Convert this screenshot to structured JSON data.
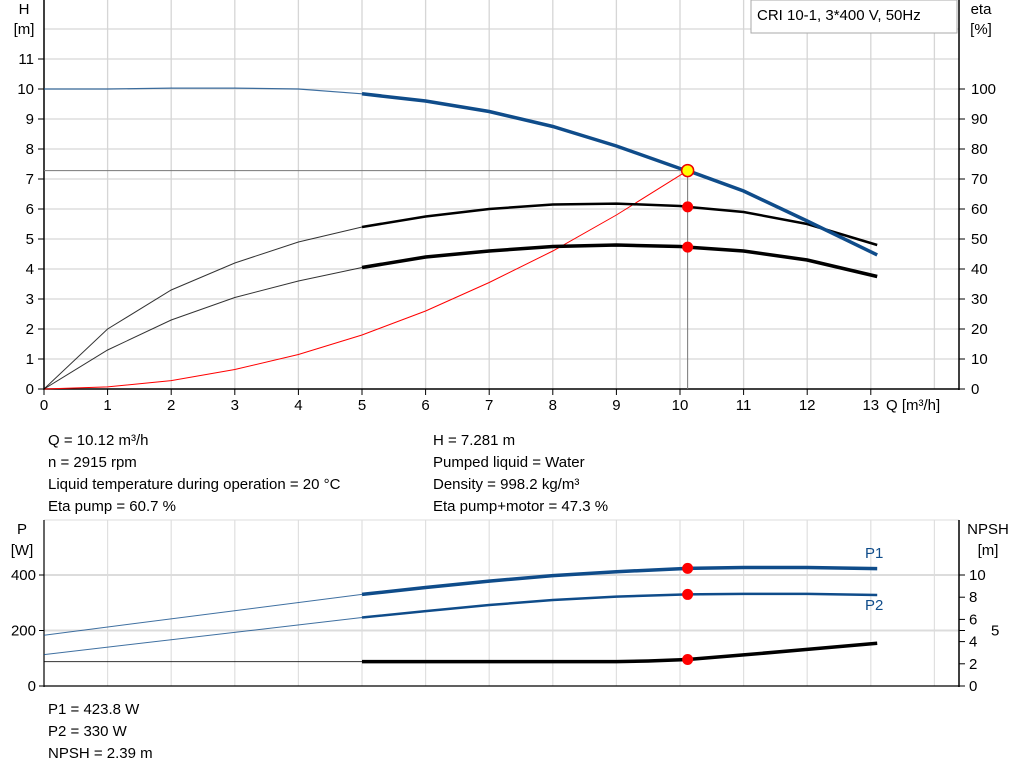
{
  "chart_data": [
    {
      "type": "line",
      "legend_box": "CRI 10-1, 3*400 V, 50Hz",
      "xlabel": "Q [m³/h]",
      "ylabel_left": [
        "H",
        "[m]"
      ],
      "ylabel_right": [
        "eta",
        "[%]"
      ],
      "xlim": [
        0,
        14.4
      ],
      "ylim_left": [
        0,
        13
      ],
      "ylim_right": [
        0,
        130
      ],
      "x_ticks": [
        0,
        1,
        2,
        3,
        4,
        5,
        6,
        7,
        8,
        9,
        10,
        11,
        12,
        13
      ],
      "y_ticks_left": [
        0,
        1,
        2,
        3,
        4,
        5,
        6,
        7,
        8,
        9,
        10,
        11
      ],
      "y_ticks_right": [
        0,
        10,
        20,
        30,
        40,
        50,
        60,
        70,
        80,
        90,
        100
      ],
      "grid": true,
      "series": [
        {
          "key": "H",
          "axis": "left",
          "color": "#0f4c8a",
          "x": [
            0,
            1,
            2,
            3,
            4,
            5,
            6,
            7,
            8,
            9,
            10,
            10.12,
            11,
            12,
            13.1
          ],
          "y": [
            10,
            10,
            10.03,
            10.03,
            10,
            9.84,
            9.6,
            9.25,
            8.75,
            8.1,
            7.35,
            7.28,
            6.6,
            5.6,
            4.47
          ]
        },
        {
          "key": "eta_pump",
          "axis": "right",
          "color": "#000000",
          "x": [
            0,
            1,
            2,
            3,
            4,
            5,
            6,
            7,
            8,
            9,
            10,
            10.12,
            11,
            12,
            13.1
          ],
          "y": [
            0,
            20,
            33,
            42,
            49,
            54,
            57.5,
            60,
            61.5,
            61.8,
            61,
            60.7,
            59,
            55,
            48
          ]
        },
        {
          "key": "eta_pump_motor",
          "axis": "right",
          "color": "#000000",
          "x": [
            0,
            1,
            2,
            3,
            4,
            5,
            6,
            7,
            8,
            9,
            10,
            10.12,
            11,
            12,
            13.1
          ],
          "y": [
            0,
            13,
            23,
            30.5,
            36,
            40.5,
            44,
            46,
            47.5,
            48,
            47.5,
            47.3,
            46,
            43,
            37.5
          ]
        },
        {
          "key": "system_curve",
          "axis": "left",
          "color": "#ff0000",
          "x": [
            0,
            1,
            2,
            3,
            4,
            5,
            6,
            7,
            8,
            9,
            10.12
          ],
          "y": [
            0,
            0.07,
            0.28,
            0.65,
            1.15,
            1.8,
            2.6,
            3.55,
            4.6,
            5.8,
            7.28
          ]
        }
      ],
      "duty_point": {
        "Q": 10.12,
        "H": 7.281,
        "eta_pump": 60.7,
        "eta_pump_motor": 47.3
      }
    },
    {
      "type": "line",
      "ylabel_left": [
        "P",
        "[W]"
      ],
      "ylabel_right": [
        "NPSH",
        "[m]"
      ],
      "xlim": [
        0,
        14.4
      ],
      "ylim_left": [
        0,
        600
      ],
      "ylim_right": [
        0,
        15
      ],
      "y_ticks_left": [
        0,
        200,
        400
      ],
      "y_ticks_right": [
        0,
        2,
        4,
        5,
        6,
        8,
        10
      ],
      "grid": true,
      "series": [
        {
          "name": "P1",
          "axis": "left",
          "color": "#0f4c8a",
          "x": [
            0,
            5,
            6,
            7,
            8,
            9,
            10.12,
            11,
            12,
            13.1
          ],
          "y": [
            183,
            330,
            355,
            378,
            398,
            412,
            423.8,
            427,
            427,
            423
          ]
        },
        {
          "name": "P2",
          "axis": "left",
          "color": "#0f4c8a",
          "x": [
            0,
            5,
            6,
            7,
            8,
            9,
            10.12,
            11,
            12,
            13.1
          ],
          "y": [
            113,
            247,
            270,
            292,
            310,
            322,
            330,
            332,
            332,
            328
          ]
        },
        {
          "key": "NPSH",
          "axis": "right",
          "color": "#000000",
          "x": [
            0,
            5,
            9,
            9.5,
            10.12,
            11,
            12,
            13.1
          ],
          "y": [
            2.2,
            2.2,
            2.2,
            2.25,
            2.39,
            2.8,
            3.3,
            3.85
          ]
        }
      ],
      "duty_point": {
        "Q": 10.12,
        "P1": 423.8,
        "P2": 330,
        "NPSH": 2.39
      }
    }
  ],
  "info_top_left": [
    "Q = 10.12 m³/h",
    "n = 2915 rpm",
    "Liquid temperature during operation = 20 °C",
    "Eta pump = 60.7 %"
  ],
  "info_top_right": [
    "H = 7.281 m",
    "Pumped liquid = Water",
    "Density = 998.2 kg/m³",
    "Eta pump+motor = 47.3 %"
  ],
  "info_bottom": [
    "P1 = 423.8 W",
    "P2 = 330 W",
    "NPSH = 2.39 m"
  ]
}
